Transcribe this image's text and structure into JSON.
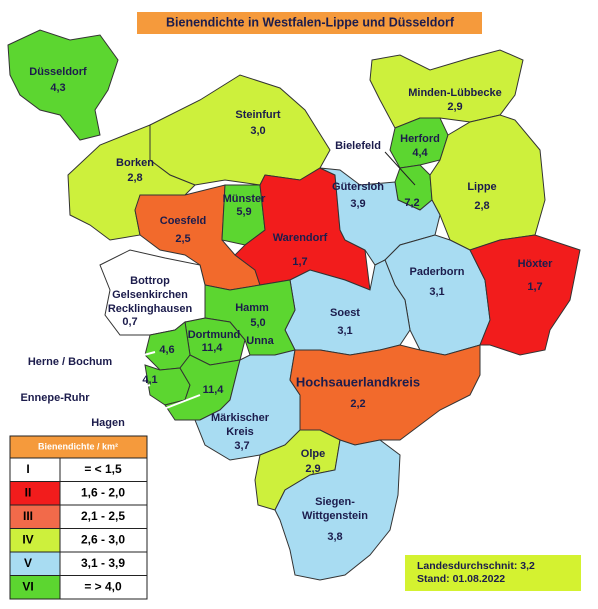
{
  "title": "Bienendichte in Westfalen-Lippe und Düsseldorf",
  "regions": [
    {
      "name": [
        "Düsseldorf"
      ],
      "value": "4,3",
      "color": "#5cd630"
    },
    {
      "name": [
        "Minden-Lübbecke"
      ],
      "value": "2,9",
      "color": "#cdf03c"
    },
    {
      "name": [
        "Herford"
      ],
      "value": "4,4",
      "color": "#5cd630"
    },
    {
      "value": "7,2",
      "color": "#5cd630"
    },
    {
      "name": [
        "Lippe"
      ],
      "value": "2,8",
      "color": "#cdf03c"
    },
    {
      "name": [
        "Steinfurt"
      ],
      "value": "3,0",
      "color": "#cdf03c"
    },
    {
      "name": [
        "Borken"
      ],
      "value": "2,8",
      "color": "#cdf03c"
    },
    {
      "name": [
        "Coesfeld"
      ],
      "value": "2,5",
      "color": "#f26a2c"
    },
    {
      "name": [
        "Münster"
      ],
      "value": "5,9",
      "color": "#5cd630"
    },
    {
      "name": [
        "Warendorf"
      ],
      "value": "1,7",
      "color": "#f21c1c"
    },
    {
      "name": [
        "Gütersloh"
      ],
      "value": "3,9",
      "color": "#a8dcf2"
    },
    {
      "name": [
        "Paderborn"
      ],
      "value": "3,1",
      "color": "#a8dcf2"
    },
    {
      "name": [
        "Höxter"
      ],
      "value": "1,7",
      "color": "#f21c1c"
    },
    {
      "name": [
        "Soest"
      ],
      "value": "3,1",
      "color": "#a8dcf2"
    },
    {
      "name": [
        "Hamm"
      ],
      "value": "5,0",
      "sub": "Unna",
      "color": "#5cd630"
    },
    {
      "name": [
        "Dortmund"
      ],
      "value": "11,4",
      "color": "#5cd630"
    },
    {
      "name": [
        "Bottrop",
        "Gelsenkirchen",
        "Recklinghausen"
      ],
      "value": "0,7",
      "color": "#ffffff"
    },
    {
      "value": "4,6",
      "color": "#5cd630"
    },
    {
      "value": "4,1",
      "color": "#5cd630"
    },
    {
      "value": "11,4",
      "color": "#5cd630"
    },
    {
      "name": [
        "Märkischer",
        "Kreis"
      ],
      "value": "3,7",
      "color": "#a8dcf2"
    },
    {
      "name": [
        "Hochsauerlandkreis"
      ],
      "value": "2,2",
      "color": "#f26a2c"
    },
    {
      "name": [
        "Olpe"
      ],
      "value": "2,9",
      "color": "#cdf03c"
    },
    {
      "name": [
        "Siegen-",
        "Wittgenstein"
      ],
      "value": "3,8",
      "color": "#a8dcf2"
    }
  ],
  "callouts": [
    "Bielefeld",
    "Herne / Bochum",
    "Ennepe-Ruhr",
    "Hagen"
  ],
  "legend": {
    "header": "Bienendichte / km²",
    "rows": [
      {
        "class": "I",
        "range": "= < 1,5",
        "color": "#ffffff"
      },
      {
        "class": "II",
        "range": "1,6 - 2,0",
        "color": "#f21c1c"
      },
      {
        "class": "III",
        "range": "2,1 - 2,5",
        "color": "#f26a4a"
      },
      {
        "class": "IV",
        "range": "2,6 - 3,0",
        "color": "#cdf03c"
      },
      {
        "class": "V",
        "range": "3,1 - 3,9",
        "color": "#a8dcf2"
      },
      {
        "class": "VI",
        "range": "= > 4,0",
        "color": "#5cd630"
      }
    ]
  },
  "note": [
    "Landesdurchschnit: 3,2",
    "Stand: 01.08.2022"
  ]
}
